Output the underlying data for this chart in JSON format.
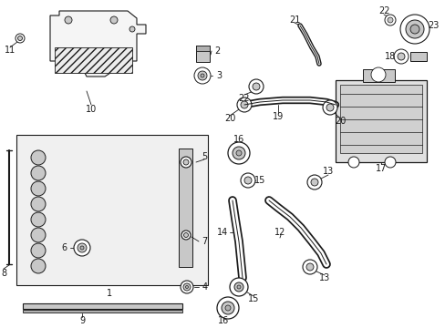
{
  "bg_color": "#ffffff",
  "line_color": "#1a1a1a",
  "gray_fill": "#e8e8e8",
  "dark_gray": "#b0b0b0",
  "mid_gray": "#c8c8c8"
}
